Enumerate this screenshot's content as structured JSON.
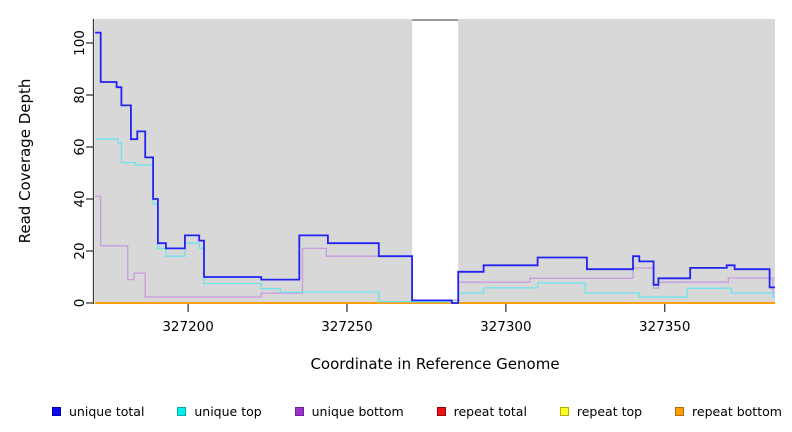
{
  "figure": {
    "x_axis_label": "Coordinate in Reference Genome",
    "y_axis_label": "Read Coverage Depth"
  },
  "chart_data": {
    "type": "line",
    "subtype": "step-after",
    "title": "",
    "xlabel": "Coordinate in Reference Genome",
    "ylabel": "Read Coverage Depth",
    "xlim": [
      327170.7,
      327384.7
    ],
    "ylim": [
      0,
      109
    ],
    "x_ticks": [
      327200,
      327250,
      327300,
      327350
    ],
    "y_ticks": [
      0,
      20,
      40,
      60,
      80,
      100
    ],
    "grid": false,
    "legend_position": "bottom",
    "panel_background": "#D8D8D8",
    "axis_color": "#3A3A3A",
    "masked_region": {
      "x_start": 327270.5,
      "x_end": 327285,
      "color": "#FFFFFF",
      "top_border_color": "#9A9A9A"
    },
    "series": [
      {
        "name": "repeat total",
        "color": "#EE1111",
        "line_width": 1.2,
        "points": [
          [
            327170.7,
            0
          ]
        ]
      },
      {
        "name": "repeat top",
        "color": "#FFFF22",
        "line_width": 1.2,
        "points": [
          [
            327170.7,
            0
          ]
        ]
      },
      {
        "name": "repeat bottom",
        "color": "#FF9D00",
        "line_width": 1.8,
        "points": [
          [
            327170.7,
            0
          ]
        ]
      },
      {
        "name": "unique bottom",
        "color": "#C79CDF",
        "line_width": 1.3,
        "points": [
          [
            327170.7,
            41
          ],
          [
            327172.5,
            22
          ],
          [
            327181,
            9
          ],
          [
            327183,
            11.5
          ],
          [
            327186.5,
            2.3
          ],
          [
            327223,
            3.8
          ],
          [
            327236,
            21
          ],
          [
            327243.5,
            18
          ],
          [
            327270.5,
            1
          ],
          [
            327285,
            8
          ],
          [
            327307.5,
            9.5
          ],
          [
            327340,
            13.5
          ],
          [
            327346.5,
            5.7
          ],
          [
            327348,
            8
          ],
          [
            327370,
            9.6
          ],
          [
            327384,
            4
          ]
        ]
      },
      {
        "name": "unique top",
        "color": "#6CE4EC",
        "line_width": 1.3,
        "points": [
          [
            327170.7,
            63
          ],
          [
            327178,
            61.5
          ],
          [
            327179,
            54
          ],
          [
            327183.5,
            53
          ],
          [
            327189,
            38
          ],
          [
            327190.5,
            21
          ],
          [
            327193,
            18
          ],
          [
            327199,
            23
          ],
          [
            327203.5,
            21
          ],
          [
            327205,
            7.5
          ],
          [
            327223,
            5.5
          ],
          [
            327229,
            4.2
          ],
          [
            327260,
            0.5
          ],
          [
            327283,
            0.2
          ],
          [
            327285,
            3.8
          ],
          [
            327293,
            5.8
          ],
          [
            327310,
            7.7
          ],
          [
            327325,
            3.8
          ],
          [
            327342,
            2.3
          ],
          [
            327357,
            5.7
          ],
          [
            327371,
            3.8
          ],
          [
            327384,
            2.3
          ]
        ]
      },
      {
        "name": "unique total",
        "color": "#2222F2",
        "line_width": 1.8,
        "points": [
          [
            327170.7,
            104
          ],
          [
            327172.5,
            85
          ],
          [
            327177.5,
            83
          ],
          [
            327179,
            76
          ],
          [
            327182,
            63
          ],
          [
            327184,
            66
          ],
          [
            327186.5,
            56
          ],
          [
            327189,
            40
          ],
          [
            327190.5,
            23
          ],
          [
            327193,
            21
          ],
          [
            327199,
            26
          ],
          [
            327203.5,
            24
          ],
          [
            327205,
            10
          ],
          [
            327223,
            9
          ],
          [
            327235,
            26
          ],
          [
            327244,
            23
          ],
          [
            327260,
            18
          ],
          [
            327270.5,
            1
          ],
          [
            327283,
            0
          ],
          [
            327285,
            12
          ],
          [
            327293,
            14.5
          ],
          [
            327310,
            17.5
          ],
          [
            327325.5,
            13
          ],
          [
            327340,
            18
          ],
          [
            327342,
            16
          ],
          [
            327346.5,
            7
          ],
          [
            327348,
            9.5
          ],
          [
            327358,
            13.5
          ],
          [
            327369.5,
            14.5
          ],
          [
            327372,
            13
          ],
          [
            327383,
            6
          ]
        ]
      }
    ]
  },
  "legend": {
    "items": [
      {
        "label": "unique total",
        "fill": "#0D0DE8",
        "border": "#0000B0"
      },
      {
        "label": "unique top",
        "fill": "#00EFEF",
        "border": "#00A8A8"
      },
      {
        "label": "unique bottom",
        "fill": "#9933CC",
        "border": "#70209A"
      },
      {
        "label": "repeat total",
        "fill": "#EE1111",
        "border": "#990000"
      },
      {
        "label": "repeat top",
        "fill": "#FFFF22",
        "border": "#B0B000"
      },
      {
        "label": "repeat bottom",
        "fill": "#FF9D00",
        "border": "#B06E00"
      }
    ]
  }
}
